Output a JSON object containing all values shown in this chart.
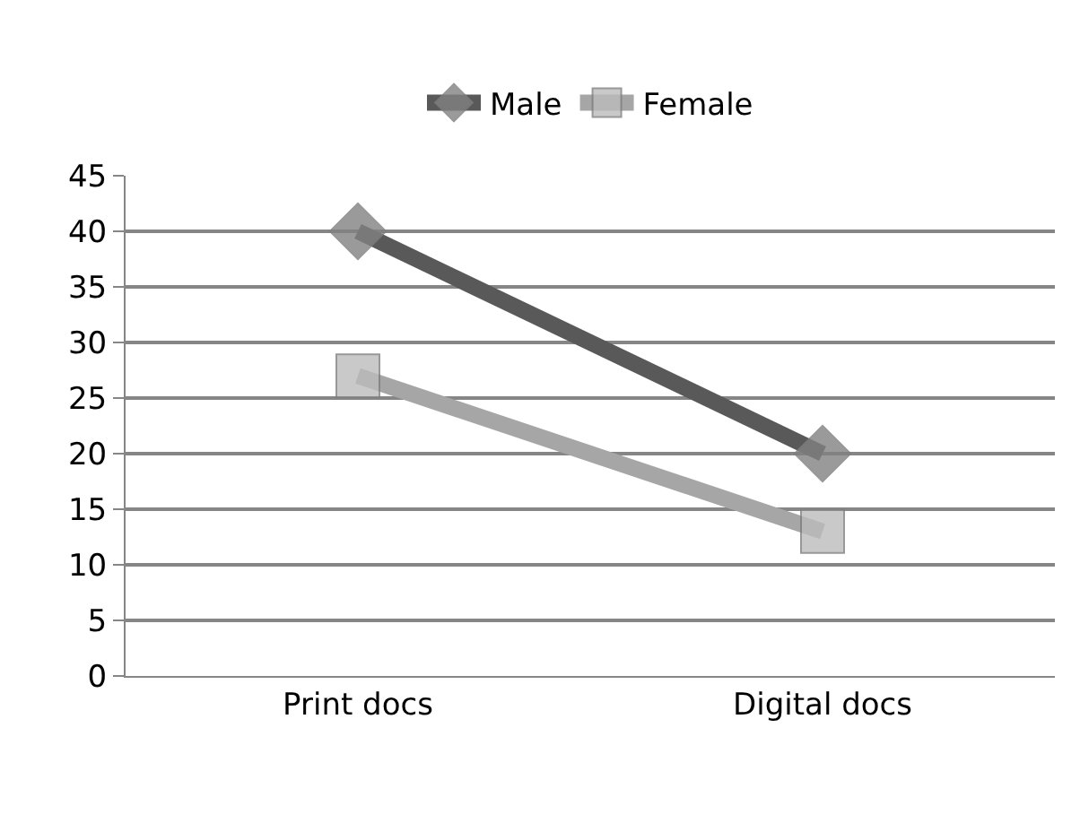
{
  "chart_data": {
    "type": "line",
    "categories": [
      "Print docs",
      "Digital docs"
    ],
    "series": [
      {
        "name": "Male",
        "color": "#595959",
        "values": [
          40,
          20
        ],
        "marker": "diamond"
      },
      {
        "name": "Female",
        "color": "#a6a6a6",
        "values": [
          27,
          13
        ],
        "marker": "square"
      }
    ],
    "ylim": [
      0,
      45
    ],
    "yticks": [
      0,
      5,
      10,
      15,
      20,
      25,
      30,
      35,
      40,
      45
    ],
    "grid": "y",
    "legend": "top",
    "line_style": "solid"
  }
}
